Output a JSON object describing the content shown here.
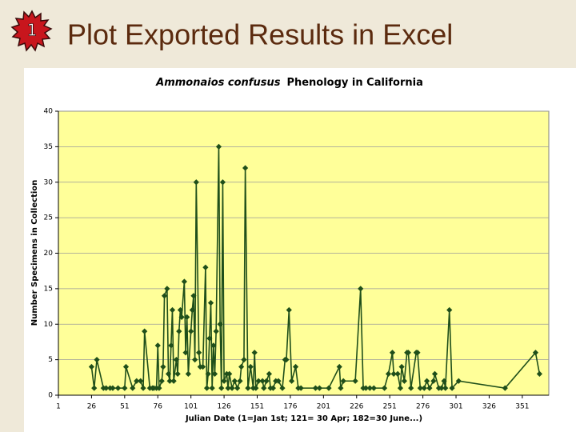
{
  "header": {
    "badge": "1",
    "title": "Plot Exported Results in Excel"
  },
  "chart_data": {
    "type": "line",
    "title": [
      "Ammonaios confusus",
      "Phenology in California"
    ],
    "x_label": "Julian Date (1=Jan 1st; 121= 30 Apr; 182=30 June...)",
    "y_label": "Number Specimens in Collection",
    "color": "#1f4f1a",
    "background": "#ffff99",
    "grid": true,
    "xlim": [
      1,
      371
    ],
    "xticks": [
      1,
      26,
      51,
      76,
      101,
      126,
      151,
      176,
      201,
      226,
      251,
      276,
      301,
      326,
      351
    ],
    "ylim": [
      0,
      40
    ],
    "yticks": [
      0,
      5,
      10,
      15,
      20,
      25,
      30,
      35,
      40
    ],
    "x": [
      26,
      28,
      30,
      35,
      37,
      40,
      42,
      46,
      51,
      52,
      57,
      60,
      63,
      65,
      66,
      70,
      72,
      73,
      75,
      76,
      77,
      79,
      80,
      81,
      83,
      84,
      85,
      86,
      87,
      88,
      90,
      91,
      92,
      93,
      94,
      96,
      97,
      98,
      99,
      101,
      102,
      103,
      104,
      105,
      107,
      108,
      110,
      112,
      113,
      114,
      115,
      116,
      117,
      118,
      119,
      120,
      122,
      123,
      124,
      125,
      126,
      128,
      129,
      130,
      132,
      134,
      136,
      138,
      139,
      141,
      142,
      144,
      146,
      148,
      149,
      150,
      152,
      155,
      156,
      158,
      160,
      161,
      163,
      165,
      167,
      170,
      172,
      173,
      175,
      177,
      180,
      182,
      184,
      195,
      198,
      205,
      213,
      214,
      216,
      225,
      229,
      231,
      233,
      236,
      239,
      247,
      250,
      253,
      254,
      257,
      259,
      260,
      262,
      264,
      265,
      267,
      271,
      272,
      274,
      277,
      279,
      281,
      284,
      285,
      288,
      290,
      292,
      293,
      296,
      298,
      303,
      338,
      361,
      364
    ],
    "values": [
      4,
      1,
      5,
      1,
      1,
      1,
      1,
      1,
      1,
      4,
      1,
      2,
      2,
      1,
      9,
      1,
      1,
      1,
      1,
      7,
      1,
      2,
      4,
      14,
      15,
      3,
      2,
      7,
      12,
      2,
      5,
      3,
      9,
      12,
      11,
      16,
      6,
      11,
      3,
      9,
      12,
      14,
      5,
      30,
      6,
      4,
      4,
      18,
      1,
      3,
      8,
      13,
      1,
      7,
      3,
      9,
      35,
      10,
      1,
      30,
      2,
      3,
      1,
      3,
      1,
      2,
      1,
      2,
      4,
      5,
      32,
      1,
      4,
      1,
      6,
      1,
      2,
      2,
      1,
      2,
      3,
      1,
      1,
      2,
      2,
      1,
      5,
      5,
      12,
      2,
      4,
      1,
      1,
      1,
      1,
      1,
      4,
      1,
      2,
      2,
      15,
      1,
      1,
      1,
      1,
      1,
      3,
      6,
      3,
      3,
      1,
      4,
      2,
      6,
      6,
      1,
      6,
      6,
      1,
      1,
      2,
      1,
      2,
      3,
      1,
      1,
      2,
      1,
      12,
      1,
      2,
      1,
      6,
      3
    ]
  }
}
